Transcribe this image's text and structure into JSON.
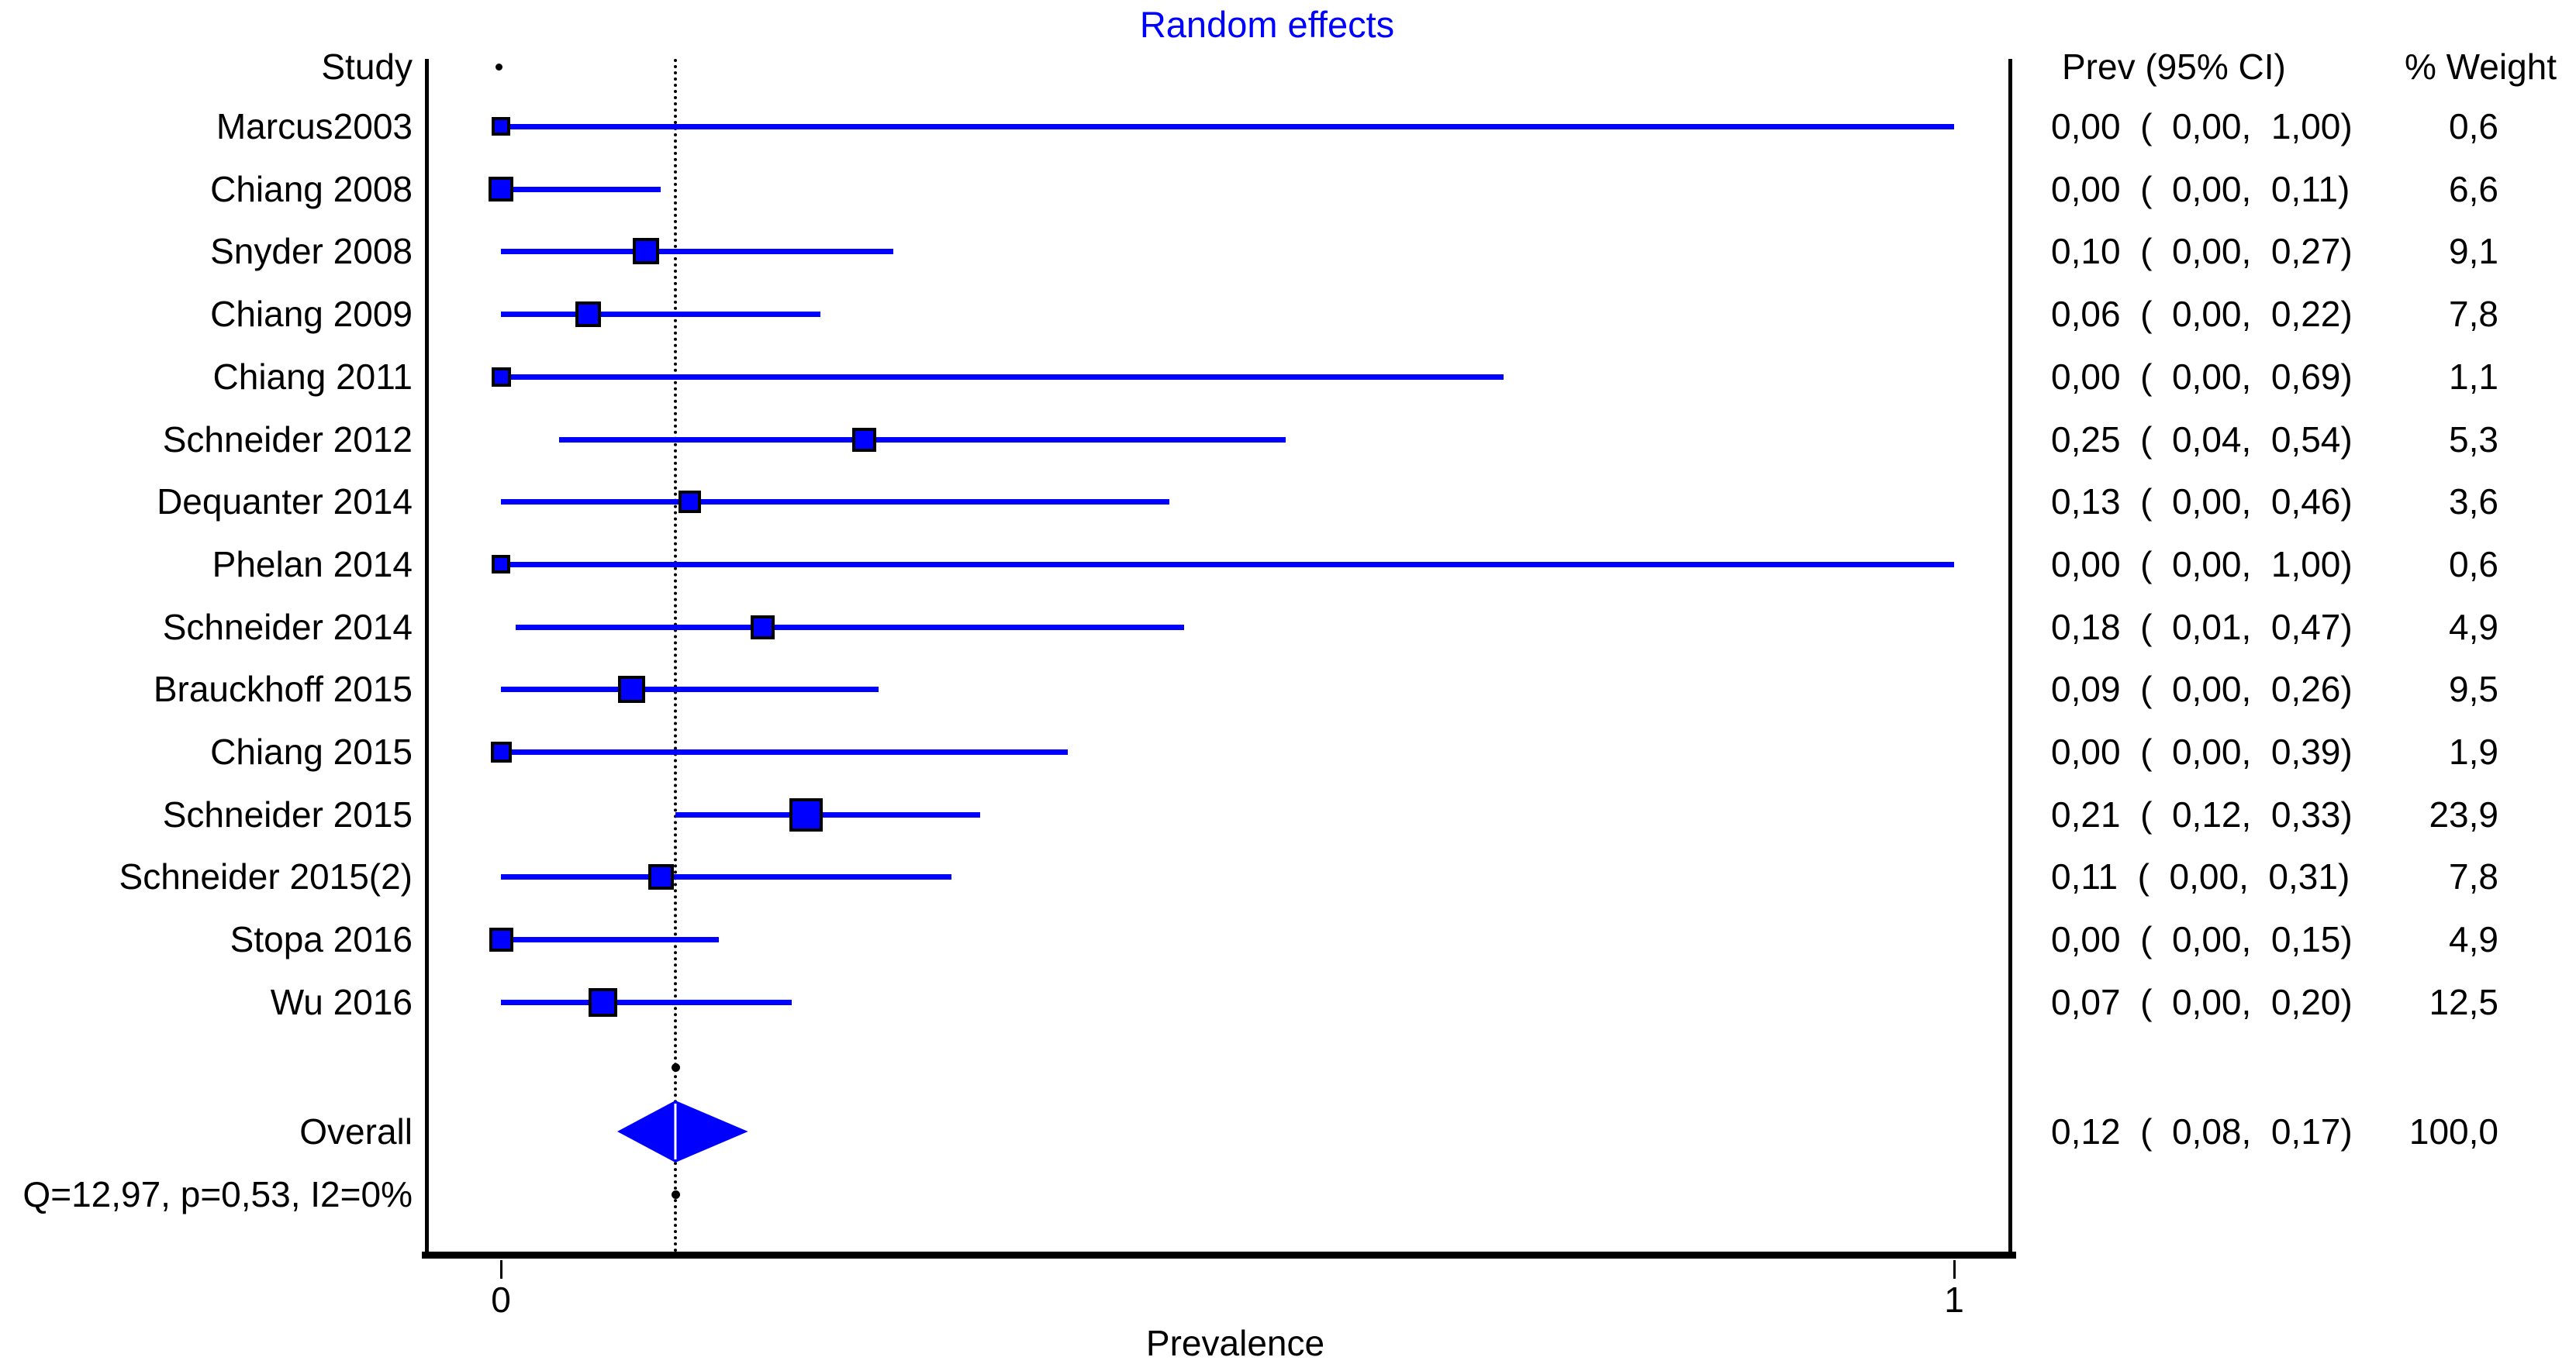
{
  "title": {
    "text": "Random effects",
    "color": "#0000ff"
  },
  "headers": {
    "study": "Study",
    "prev_ci": "Prev (95% CI)",
    "weight": "% Weight"
  },
  "x_axis": {
    "label": "Prevalence",
    "ticks": [
      {
        "label": "0",
        "value": 0
      },
      {
        "label": "1",
        "value": 1
      }
    ]
  },
  "footer": {
    "heterogeneity": "Q=12,97, p=0,53, I2=0%"
  },
  "colors": {
    "marker": "#0000ff",
    "marker_border": "#000000",
    "axis": "#000000",
    "reference_line": "#000000"
  },
  "chart_data": {
    "type": "scatter",
    "subtype": "forest-plot",
    "title": "Random effects",
    "xlabel": "Prevalence",
    "xlim": [
      0,
      1
    ],
    "reference_line_x": 0.12,
    "grid": false,
    "legend": false,
    "rows": [
      {
        "study": "Marcus2003",
        "prev": 0.0,
        "ci_low": 0.0,
        "ci_high": 1.0,
        "weight": 0.6,
        "prev_ci": "0,00  (  0,00,  1,00)",
        "weight_text": "0,6"
      },
      {
        "study": "Chiang 2008",
        "prev": 0.0,
        "ci_low": 0.0,
        "ci_high": 0.11,
        "weight": 6.6,
        "prev_ci": "0,00  (  0,00,  0,11)",
        "weight_text": "6,6"
      },
      {
        "study": "Snyder 2008",
        "prev": 0.1,
        "ci_low": 0.0,
        "ci_high": 0.27,
        "weight": 9.1,
        "prev_ci": "0,10  (  0,00,  0,27)",
        "weight_text": "9,1"
      },
      {
        "study": "Chiang 2009",
        "prev": 0.06,
        "ci_low": 0.0,
        "ci_high": 0.22,
        "weight": 7.8,
        "prev_ci": "0,06  (  0,00,  0,22)",
        "weight_text": "7,8"
      },
      {
        "study": "Chiang 2011",
        "prev": 0.0,
        "ci_low": 0.0,
        "ci_high": 0.69,
        "weight": 1.1,
        "prev_ci": "0,00  (  0,00,  0,69)",
        "weight_text": "1,1"
      },
      {
        "study": "Schneider 2012",
        "prev": 0.25,
        "ci_low": 0.04,
        "ci_high": 0.54,
        "weight": 5.3,
        "prev_ci": "0,25  (  0,04,  0,54)",
        "weight_text": "5,3"
      },
      {
        "study": "Dequanter 2014",
        "prev": 0.13,
        "ci_low": 0.0,
        "ci_high": 0.46,
        "weight": 3.6,
        "prev_ci": "0,13  (  0,00,  0,46)",
        "weight_text": "3,6"
      },
      {
        "study": "Phelan 2014",
        "prev": 0.0,
        "ci_low": 0.0,
        "ci_high": 1.0,
        "weight": 0.6,
        "prev_ci": "0,00  (  0,00,  1,00)",
        "weight_text": "0,6"
      },
      {
        "study": "Schneider 2014",
        "prev": 0.18,
        "ci_low": 0.01,
        "ci_high": 0.47,
        "weight": 4.9,
        "prev_ci": "0,18  (  0,01,  0,47)",
        "weight_text": "4,9"
      },
      {
        "study": "Brauckhoff 2015",
        "prev": 0.09,
        "ci_low": 0.0,
        "ci_high": 0.26,
        "weight": 9.5,
        "prev_ci": "0,09  (  0,00,  0,26)",
        "weight_text": "9,5"
      },
      {
        "study": "Chiang 2015",
        "prev": 0.0,
        "ci_low": 0.0,
        "ci_high": 0.39,
        "weight": 1.9,
        "prev_ci": "0,00  (  0,00,  0,39)",
        "weight_text": "1,9"
      },
      {
        "study": "Schneider 2015",
        "prev": 0.21,
        "ci_low": 0.12,
        "ci_high": 0.33,
        "weight": 23.9,
        "prev_ci": "0,21  (  0,12,  0,33)",
        "weight_text": "23,9"
      },
      {
        "study": "Schneider 2015(2)",
        "prev": 0.11,
        "ci_low": 0.0,
        "ci_high": 0.31,
        "weight": 7.8,
        "prev_ci": "0,11  (  0,00,  0,31)",
        "weight_text": "7,8"
      },
      {
        "study": "Stopa 2016",
        "prev": 0.0,
        "ci_low": 0.0,
        "ci_high": 0.15,
        "weight": 4.9,
        "prev_ci": "0,00  (  0,00,  0,15)",
        "weight_text": "4,9"
      },
      {
        "study": "Wu 2016",
        "prev": 0.07,
        "ci_low": 0.0,
        "ci_high": 0.2,
        "weight": 12.5,
        "prev_ci": "0,07  (  0,00,  0,20)",
        "weight_text": "12,5"
      }
    ],
    "overall": {
      "study": "Overall",
      "prev": 0.12,
      "ci_low": 0.08,
      "ci_high": 0.17,
      "weight": 100.0,
      "prev_ci": "0,12  (  0,08,  0,17)",
      "weight_text": "100,0"
    },
    "heterogeneity": "Q=12,97, p=0,53, I2=0%"
  }
}
